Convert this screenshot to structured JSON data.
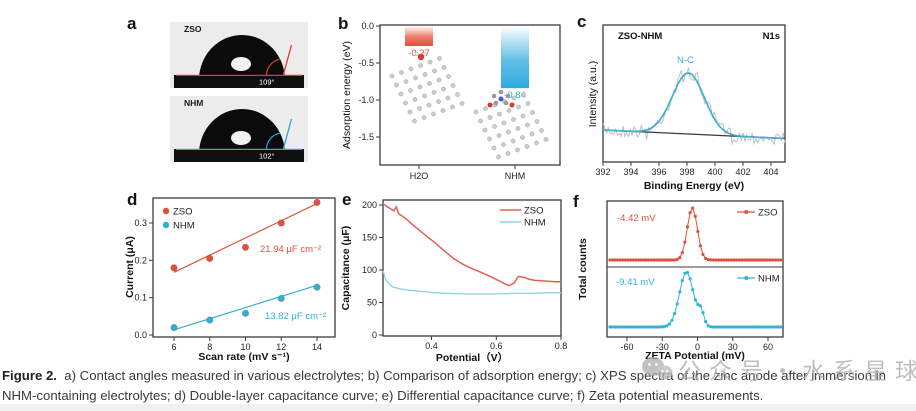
{
  "panel_letters": {
    "a": "a",
    "b": "b",
    "c": "c",
    "d": "d",
    "e": "e",
    "f": "f"
  },
  "panel_a": {
    "samples": [
      {
        "name": "ZSO",
        "angle": "109°",
        "line_color": "#e03a2a"
      },
      {
        "name": "NHM",
        "angle": "102°",
        "line_color": "#2aa8dc"
      }
    ]
  },
  "chart_data": [
    {
      "panel": "b",
      "type": "bar",
      "categories": [
        "H2O",
        "NHM"
      ],
      "values": [
        -0.27,
        -0.84
      ],
      "bar_labels": [
        "-0.27",
        "-0.84"
      ],
      "bar_colors": [
        "#e2503a",
        "#2eaadf"
      ],
      "ylabel": "Adsorption energy (eV)",
      "yticks": [
        "0.0",
        "-0.5",
        "-1.0",
        "-1.5"
      ],
      "ylim": [
        -1.9,
        0
      ],
      "legend_position": "none",
      "grid": false
    },
    {
      "panel": "c",
      "type": "line",
      "annotation_left": "ZSO-NHM",
      "annotation_right": "N1s",
      "peak_label": "N-C",
      "xlabel": "Binding Energy (eV)",
      "ylabel": "Intensity (a.u.)",
      "xticks": [
        392,
        394,
        396,
        398,
        400,
        402,
        404
      ],
      "xlim": [
        392,
        405
      ],
      "series": [
        {
          "name": "raw spectrum",
          "color": "#c0c0c0"
        },
        {
          "name": "N-C fit",
          "color": "#41aed2",
          "peak_center_ev": 398.1,
          "fwhm_ev": 2.7
        },
        {
          "name": "baseline",
          "color": "#3a3a3a"
        }
      ],
      "grid": false
    },
    {
      "panel": "d",
      "type": "scatter",
      "xlabel": "Scan rate (mV s⁻¹)",
      "ylabel": "Current (μA)",
      "xticks": [
        6,
        8,
        10,
        12,
        14
      ],
      "yticks": [
        "0.0",
        "0.1",
        "0.2",
        "0.3"
      ],
      "xlim": [
        5,
        15
      ],
      "ylim": [
        0,
        0.37
      ],
      "x": [
        6,
        8,
        10,
        12,
        14
      ],
      "series": [
        {
          "name": "ZSO",
          "color": "#e0503c",
          "values": [
            0.18,
            0.205,
            0.235,
            0.3,
            0.355
          ],
          "fit": [
            [
              6,
              0.168
            ],
            [
              14,
              0.352
            ]
          ],
          "slope_label": "21.94 μF cm⁻²"
        },
        {
          "name": "NHM",
          "color": "#35aed4",
          "values": [
            0.02,
            0.04,
            0.058,
            0.098,
            0.128
          ],
          "fit": [
            [
              6,
              0.014
            ],
            [
              14,
              0.133
            ]
          ],
          "slope_label": "13.82 μF cm⁻²"
        }
      ],
      "legend_position": "top-left",
      "grid": false
    },
    {
      "panel": "e",
      "type": "line",
      "xlabel": "Potential（V）",
      "ylabel": "Capacitance (μF)",
      "xticks": [
        "0.4",
        "0.6",
        "0.8"
      ],
      "xtick_vals": [
        0.4,
        0.6,
        0.8
      ],
      "yticks": [
        0,
        50,
        100,
        150,
        200
      ],
      "xlim": [
        0.25,
        0.8
      ],
      "ylim": [
        0,
        210
      ],
      "series": [
        {
          "name": "ZSO",
          "color": "#e2604c",
          "points": [
            [
              0.25,
              202
            ],
            [
              0.268,
              196
            ],
            [
              0.283,
              191
            ],
            [
              0.291,
              197
            ],
            [
              0.298,
              187
            ],
            [
              0.32,
              179
            ],
            [
              0.35,
              166
            ],
            [
              0.38,
              154
            ],
            [
              0.41,
              142
            ],
            [
              0.44,
              129
            ],
            [
              0.47,
              117
            ],
            [
              0.5,
              108
            ],
            [
              0.53,
              101
            ],
            [
              0.56,
              95
            ],
            [
              0.59,
              88
            ],
            [
              0.61,
              83
            ],
            [
              0.625,
              79
            ],
            [
              0.64,
              76
            ],
            [
              0.655,
              80
            ],
            [
              0.668,
              90
            ],
            [
              0.685,
              89
            ],
            [
              0.7,
              86
            ],
            [
              0.72,
              84
            ],
            [
              0.75,
              83
            ],
            [
              0.78,
              82
            ],
            [
              0.8,
              82
            ]
          ]
        },
        {
          "name": "NHM",
          "color": "#8fd0e4",
          "points": [
            [
              0.25,
              99
            ],
            [
              0.255,
              90
            ],
            [
              0.26,
              84
            ],
            [
              0.27,
              78
            ],
            [
              0.28,
              74
            ],
            [
              0.3,
              71
            ],
            [
              0.33,
              69
            ],
            [
              0.37,
              67
            ],
            [
              0.41,
              65
            ],
            [
              0.45,
              64
            ],
            [
              0.5,
              63
            ],
            [
              0.55,
              63
            ],
            [
              0.6,
              63
            ],
            [
              0.65,
              64
            ],
            [
              0.7,
              64
            ],
            [
              0.75,
              65
            ],
            [
              0.8,
              65
            ]
          ]
        }
      ],
      "legend_position": "top-right",
      "grid": false
    },
    {
      "panel": "f",
      "type": "line",
      "xlabel": "ZETA Potential (mV)",
      "ylabel": "Total counts",
      "xticks": [
        -60,
        -30,
        0,
        30,
        60
      ],
      "xlim": [
        -77,
        73
      ],
      "series": [
        {
          "name": "ZSO",
          "color": "#e0503c",
          "peak_label": "-4.42 mV",
          "peak_center_mv": -4.42,
          "sigma_mv": 4.3
        },
        {
          "name": "NHM",
          "color": "#2fb3dd",
          "peak_label": "-9.41 mV",
          "peak_center_mv": -9.41,
          "sigma_mv": 6.0,
          "shoulder": {
            "center_mv": 3.0,
            "rel_amp": 0.25,
            "sigma_mv": 2.5
          }
        }
      ],
      "legend_position": "top-right",
      "grid": false
    }
  ],
  "caption": {
    "prefix": "Figure 2.",
    "line1": "a) Contact angles measured in various electrolytes; b) Comparison of adsorption energy; c) XPS spectra of the zinc anode after immersion in",
    "line2": "NHM-containing electrolytes; d) Double-layer capacitance curve; e) Differential capacitance curve; f) Zeta potential measurements."
  },
  "watermark": {
    "text": "公众号・水系星球"
  }
}
